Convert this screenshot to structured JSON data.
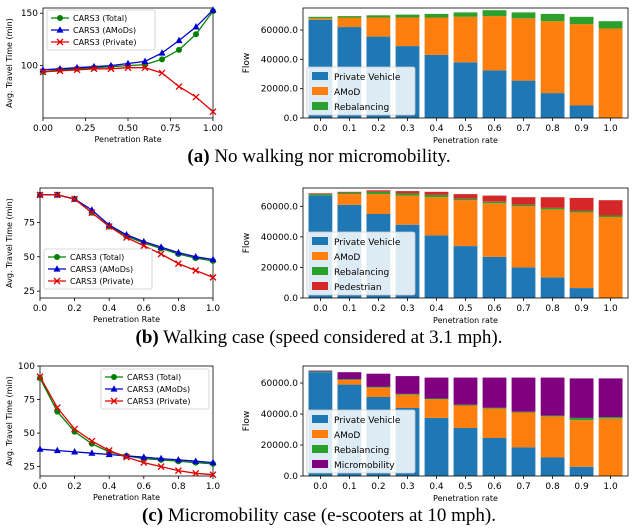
{
  "colors": {
    "private": "#1f77b4",
    "amod": "#ff7f0e",
    "rebalancing": "#2ca02c",
    "pedestrian": "#d62728",
    "micromobility": "#800080",
    "line_total": "#008000",
    "line_amods": "#0000cc",
    "line_private": "#e00000"
  },
  "panels": [
    {
      "label": "(a)",
      "text": "No walking nor micromobility."
    },
    {
      "label": "(b)",
      "text": "Walking case (speed considered at 3.1 mph)."
    },
    {
      "label": "(c)",
      "text": "Micromobility case (e-scooters at 10 mph)."
    }
  ],
  "chart_data": [
    {
      "id": "a-line",
      "type": "line",
      "xlabel": "Penetration Rate",
      "ylabel": "Avg. Travel Time (min)",
      "xlim": [
        0,
        1
      ],
      "ylim": [
        50,
        155
      ],
      "xticks": [
        "0.00",
        "0.25",
        "0.50",
        "0.75",
        "1.00"
      ],
      "xtick_values": [
        0,
        0.25,
        0.5,
        0.75,
        1.0
      ],
      "yticks": [
        "100",
        "150"
      ],
      "ytick_values": [
        100,
        150
      ],
      "legend": "top-left",
      "x": [
        0,
        0.1,
        0.2,
        0.3,
        0.4,
        0.5,
        0.6,
        0.7,
        0.8,
        0.9,
        1.0
      ],
      "series": [
        {
          "name": "CARS3 (Total)",
          "marker": "circle",
          "color_key": "line_total",
          "values": [
            94,
            96,
            97,
            98,
            99,
            100,
            101,
            106,
            115,
            130,
            152
          ]
        },
        {
          "name": "CARS3 (AMoDs)",
          "marker": "triangle",
          "color_key": "line_amods",
          "values": [
            96,
            97,
            98,
            99,
            100,
            102,
            104,
            112,
            124,
            137,
            153
          ]
        },
        {
          "name": "CARS3 (Private)",
          "marker": "x",
          "color_key": "line_private",
          "values": [
            94,
            95,
            96,
            97,
            97,
            98,
            98,
            93,
            80,
            70,
            56
          ]
        }
      ]
    },
    {
      "id": "a-bar",
      "type": "bar",
      "stacked": true,
      "xlabel": "Penetration rate",
      "ylabel": "Flow",
      "ylim": [
        0,
        75000
      ],
      "yticks": [
        "0.0",
        "20000.0",
        "40000.0",
        "60000.0"
      ],
      "ytick_values": [
        0,
        20000,
        40000,
        60000
      ],
      "legend": "bottom-left",
      "categories": [
        "0.0",
        "0.1",
        "0.2",
        "0.3",
        "0.4",
        "0.5",
        "0.6",
        "0.7",
        "0.8",
        "0.9",
        "1.0"
      ],
      "series": [
        {
          "name": "Private Vehicle",
          "color_key": "private",
          "values": [
            67000,
            62000,
            55500,
            49000,
            43000,
            38000,
            32500,
            25500,
            17000,
            8500,
            0
          ]
        },
        {
          "name": "AMoD",
          "color_key": "amod",
          "values": [
            1000,
            6500,
            13000,
            19500,
            25500,
            31000,
            37000,
            42500,
            49000,
            55500,
            61000
          ]
        },
        {
          "name": "Rebalancing",
          "color_key": "rebalancing",
          "values": [
            1000,
            1000,
            1500,
            2000,
            2500,
            3000,
            4000,
            4000,
            5000,
            5000,
            5000
          ]
        }
      ]
    },
    {
      "id": "b-line",
      "type": "line",
      "xlabel": "Penetration Rate",
      "ylabel": "Avg. Travel Time (min)",
      "xlim": [
        0,
        1
      ],
      "ylim": [
        20,
        100
      ],
      "xticks": [
        "0.0",
        "0.2",
        "0.4",
        "0.6",
        "0.8",
        "1.0"
      ],
      "xtick_values": [
        0,
        0.2,
        0.4,
        0.6,
        0.8,
        1.0
      ],
      "yticks": [
        "25",
        "50",
        "75"
      ],
      "ytick_values": [
        25,
        50,
        75
      ],
      "legend": "bottom-left",
      "x": [
        0,
        0.1,
        0.2,
        0.3,
        0.4,
        0.5,
        0.6,
        0.7,
        0.8,
        0.9,
        1.0
      ],
      "series": [
        {
          "name": "CARS3 (Total)",
          "marker": "circle",
          "color_key": "line_total",
          "values": [
            95,
            95,
            92,
            82,
            72,
            65,
            60,
            56,
            52,
            49,
            47
          ]
        },
        {
          "name": "CARS3 (AMoDs)",
          "marker": "triangle",
          "color_key": "line_amods",
          "values": [
            95,
            95,
            92,
            84,
            73,
            66,
            61,
            57,
            53,
            50,
            48
          ]
        },
        {
          "name": "CARS3 (Private)",
          "marker": "x",
          "color_key": "line_private",
          "values": [
            95,
            95,
            92,
            82,
            72,
            64,
            58,
            52,
            45,
            40,
            35
          ]
        }
      ]
    },
    {
      "id": "b-bar",
      "type": "bar",
      "stacked": true,
      "xlabel": "Penetration rate",
      "ylabel": "Flow",
      "ylim": [
        0,
        72000
      ],
      "yticks": [
        "0.0",
        "20000.0",
        "40000.0",
        "60000.0"
      ],
      "ytick_values": [
        0,
        20000,
        40000,
        60000
      ],
      "legend": "bottom-left",
      "categories": [
        "0.0",
        "0.1",
        "0.2",
        "0.3",
        "0.4",
        "0.5",
        "0.6",
        "0.7",
        "0.8",
        "0.9",
        "1.0"
      ],
      "series": [
        {
          "name": "Private Vehicle",
          "color_key": "private",
          "values": [
            67000,
            61000,
            55000,
            48000,
            41000,
            34000,
            27000,
            20000,
            13500,
            6500,
            0
          ]
        },
        {
          "name": "AMoD",
          "color_key": "amod",
          "values": [
            0,
            7000,
            13000,
            19000,
            25000,
            30000,
            35000,
            40000,
            44500,
            49500,
            53000
          ]
        },
        {
          "name": "Rebalancing",
          "color_key": "rebalancing",
          "values": [
            1000,
            1000,
            1500,
            1500,
            1500,
            1000,
            1000,
            1000,
            1000,
            1000,
            1000
          ]
        },
        {
          "name": "Pedestrian",
          "color_key": "pedestrian",
          "values": [
            500,
            500,
            1000,
            1500,
            2000,
            3000,
            4000,
            5000,
            7000,
            8500,
            10000
          ]
        }
      ]
    },
    {
      "id": "c-line",
      "type": "line",
      "xlabel": "Penetration Rate",
      "ylabel": "Avg. Travel Time (min)",
      "xlim": [
        0,
        1
      ],
      "ylim": [
        18,
        100
      ],
      "xticks": [
        "0.0",
        "0.2",
        "0.4",
        "0.6",
        "0.8",
        "1.0"
      ],
      "xtick_values": [
        0,
        0.2,
        0.4,
        0.6,
        0.8,
        1.0
      ],
      "yticks": [
        "25",
        "50",
        "75",
        "100"
      ],
      "ytick_values": [
        25,
        50,
        75,
        100
      ],
      "legend": "top-right",
      "x": [
        0,
        0.1,
        0.2,
        0.3,
        0.4,
        0.5,
        0.6,
        0.7,
        0.8,
        0.9,
        1.0
      ],
      "series": [
        {
          "name": "CARS3 (Total)",
          "marker": "circle",
          "color_key": "line_total",
          "values": [
            91,
            66,
            51,
            42,
            36,
            33,
            31,
            30,
            29,
            28,
            27
          ]
        },
        {
          "name": "CARS3 (AMoDs)",
          "marker": "triangle",
          "color_key": "line_amods",
          "values": [
            38,
            37,
            36,
            35,
            34,
            33,
            32,
            31,
            30,
            29,
            28
          ]
        },
        {
          "name": "CARS3 (Private)",
          "marker": "x",
          "color_key": "line_private",
          "values": [
            92,
            69,
            53,
            44,
            37,
            32,
            28,
            25,
            22,
            20,
            19
          ]
        }
      ]
    },
    {
      "id": "c-bar",
      "type": "bar",
      "stacked": true,
      "xlabel": "Penetration rate",
      "ylabel": "Flow",
      "ylim": [
        0,
        71000
      ],
      "yticks": [
        "0.0",
        "20000.0",
        "40000.0",
        "60000.0"
      ],
      "ytick_values": [
        0,
        20000,
        40000,
        60000
      ],
      "legend": "bottom-left",
      "categories": [
        "0.0",
        "0.1",
        "0.2",
        "0.3",
        "0.4",
        "0.5",
        "0.6",
        "0.7",
        "0.8",
        "0.9",
        "1.0"
      ],
      "series": [
        {
          "name": "Private Vehicle",
          "color_key": "private",
          "values": [
            67000,
            59000,
            51000,
            44000,
            37500,
            31000,
            24500,
            18500,
            12000,
            6000,
            0
          ]
        },
        {
          "name": "AMoD",
          "color_key": "amod",
          "values": [
            0,
            3000,
            6000,
            8500,
            12000,
            14500,
            19000,
            22500,
            26500,
            30000,
            37000
          ]
        },
        {
          "name": "Rebalancing",
          "color_key": "rebalancing",
          "values": [
            500,
            500,
            500,
            500,
            500,
            500,
            500,
            500,
            500,
            1500,
            1000
          ]
        },
        {
          "name": "Micromobility",
          "color_key": "micromobility",
          "values": [
            500,
            4500,
            8500,
            11500,
            13500,
            17500,
            19500,
            22000,
            24500,
            25500,
            25000
          ]
        }
      ]
    }
  ]
}
